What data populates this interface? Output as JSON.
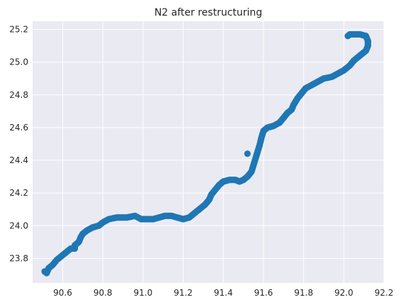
{
  "chart_data": {
    "type": "scatter",
    "title": "N2 after restructuring",
    "xlabel": "",
    "ylabel": "",
    "xlim": [
      90.45,
      92.2
    ],
    "ylim": [
      23.65,
      25.25
    ],
    "x_ticks": [
      90.6,
      90.8,
      91.0,
      91.2,
      91.4,
      91.6,
      91.8,
      92.0,
      92.2
    ],
    "x_tick_labels": [
      "90.6",
      "90.8",
      "91.0",
      "91.2",
      "91.4",
      "91.6",
      "91.8",
      "92.0",
      "92.2"
    ],
    "y_ticks": [
      23.8,
      24.0,
      24.2,
      24.4,
      24.6,
      24.8,
      25.0,
      25.2
    ],
    "y_tick_labels": [
      "23.8",
      "24.0",
      "24.2",
      "24.4",
      "24.6",
      "24.8",
      "25.0",
      "25.2"
    ],
    "grid": true,
    "background": "#eaeaf2",
    "marker_color": "#1f77b4",
    "series": [
      {
        "points": [
          [
            90.51,
            23.72
          ],
          [
            90.52,
            23.71
          ],
          [
            90.53,
            23.74
          ],
          [
            90.55,
            23.76
          ],
          [
            90.57,
            23.79
          ],
          [
            90.6,
            23.82
          ],
          [
            90.62,
            23.84
          ],
          [
            90.64,
            23.86
          ],
          [
            90.66,
            23.86
          ],
          [
            90.66,
            23.88
          ],
          [
            90.68,
            23.9
          ],
          [
            90.69,
            23.93
          ],
          [
            90.7,
            23.95
          ],
          [
            90.72,
            23.97
          ],
          [
            90.75,
            23.99
          ],
          [
            90.78,
            24.0
          ],
          [
            90.8,
            24.02
          ],
          [
            90.83,
            24.04
          ],
          [
            90.87,
            24.05
          ],
          [
            90.92,
            24.05
          ],
          [
            90.96,
            24.06
          ],
          [
            90.99,
            24.04
          ],
          [
            91.02,
            24.04
          ],
          [
            91.05,
            24.04
          ],
          [
            91.08,
            24.05
          ],
          [
            91.11,
            24.06
          ],
          [
            91.14,
            24.06
          ],
          [
            91.17,
            24.05
          ],
          [
            91.2,
            24.04
          ],
          [
            91.23,
            24.05
          ],
          [
            91.25,
            24.07
          ],
          [
            91.27,
            24.09
          ],
          [
            91.29,
            24.11
          ],
          [
            91.31,
            24.13
          ],
          [
            91.33,
            24.16
          ],
          [
            91.34,
            24.19
          ],
          [
            91.36,
            24.22
          ],
          [
            91.38,
            24.25
          ],
          [
            91.4,
            24.27
          ],
          [
            91.43,
            24.28
          ],
          [
            91.46,
            24.28
          ],
          [
            91.48,
            24.27
          ],
          [
            91.5,
            24.28
          ],
          [
            91.52,
            24.3
          ],
          [
            91.54,
            24.33
          ],
          [
            91.55,
            24.37
          ],
          [
            91.56,
            24.41
          ],
          [
            91.57,
            24.45
          ],
          [
            91.58,
            24.49
          ],
          [
            91.59,
            24.54
          ],
          [
            91.6,
            24.58
          ],
          [
            91.62,
            24.6
          ],
          [
            91.65,
            24.61
          ],
          [
            91.68,
            24.63
          ],
          [
            91.7,
            24.66
          ],
          [
            91.72,
            24.69
          ],
          [
            91.74,
            24.71
          ],
          [
            91.75,
            24.74
          ],
          [
            91.77,
            24.78
          ],
          [
            91.79,
            24.81
          ],
          [
            91.81,
            24.84
          ],
          [
            91.84,
            24.86
          ],
          [
            91.87,
            24.88
          ],
          [
            91.9,
            24.9
          ],
          [
            91.94,
            24.91
          ],
          [
            91.97,
            24.93
          ],
          [
            92.0,
            24.95
          ],
          [
            92.03,
            24.98
          ],
          [
            92.05,
            25.01
          ],
          [
            92.07,
            25.03
          ],
          [
            92.09,
            25.05
          ],
          [
            92.11,
            25.07
          ],
          [
            92.12,
            25.1
          ],
          [
            92.12,
            25.13
          ],
          [
            92.11,
            25.16
          ],
          [
            92.08,
            25.17
          ],
          [
            92.05,
            25.17
          ],
          [
            92.03,
            25.17
          ],
          [
            92.02,
            25.16
          ],
          [
            91.52,
            24.44
          ]
        ]
      }
    ]
  }
}
